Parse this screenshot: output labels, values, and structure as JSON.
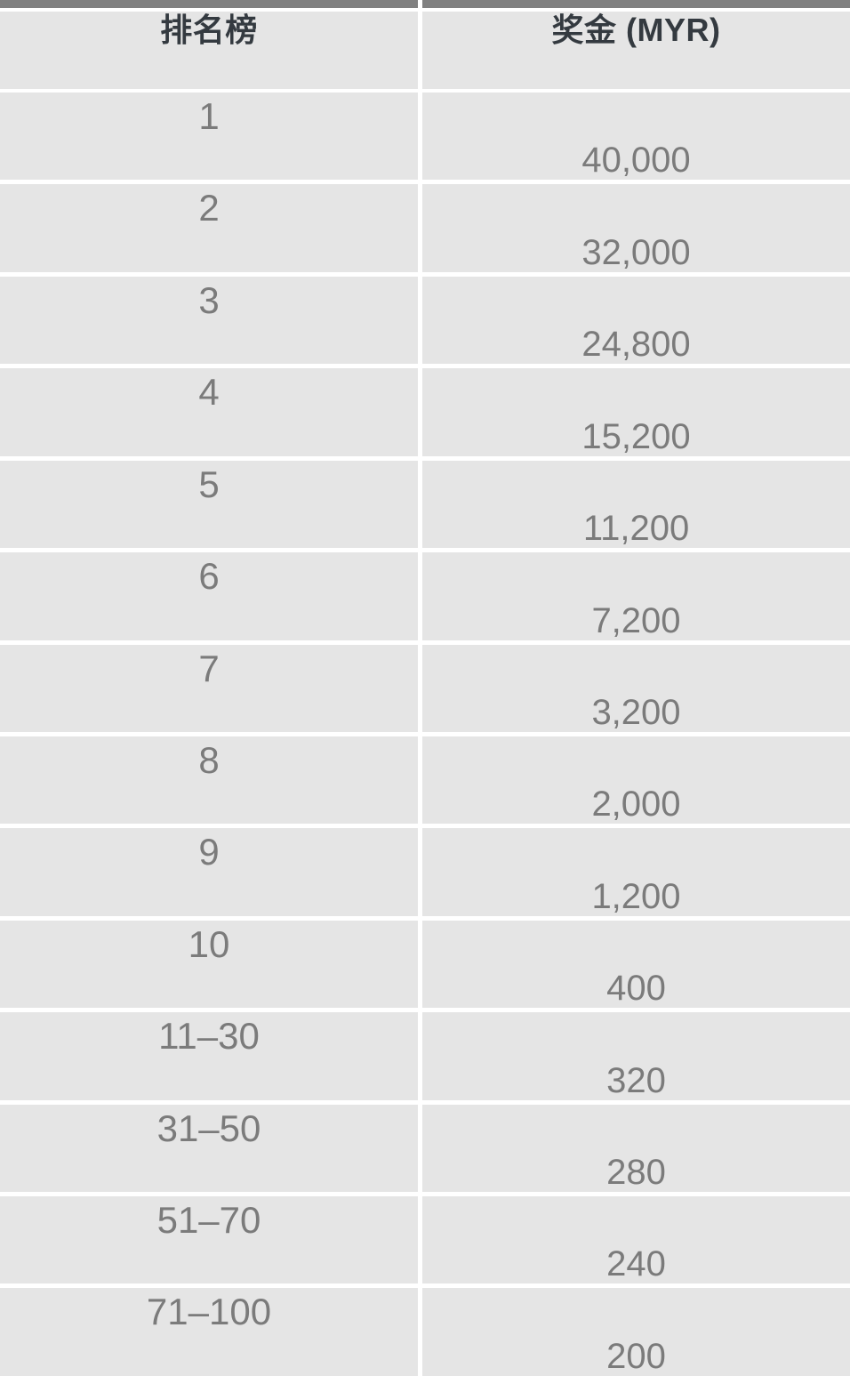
{
  "colors": {
    "top_bar": "#808080",
    "cell_bg": "#e5e5e5",
    "gap": "#ffffff",
    "header_text": "#343a40",
    "cell_text": "#7b7b7b"
  },
  "table": {
    "columns": [
      {
        "label": "排名榜"
      },
      {
        "label": "奖金 (MYR)"
      }
    ],
    "rows": [
      {
        "rank": "1",
        "prize": "40,000"
      },
      {
        "rank": "2",
        "prize": "32,000"
      },
      {
        "rank": "3",
        "prize": "24,800"
      },
      {
        "rank": "4",
        "prize": "15,200"
      },
      {
        "rank": "5",
        "prize": "11,200"
      },
      {
        "rank": "6",
        "prize": "7,200"
      },
      {
        "rank": "7",
        "prize": "3,200"
      },
      {
        "rank": "8",
        "prize": "2,000"
      },
      {
        "rank": "9",
        "prize": "1,200"
      },
      {
        "rank": "10",
        "prize": "400"
      },
      {
        "rank": "11–30",
        "prize": "320"
      },
      {
        "rank": "31–50",
        "prize": "280"
      },
      {
        "rank": "51–70",
        "prize": "240"
      },
      {
        "rank": "71–100",
        "prize": "200"
      }
    ]
  }
}
